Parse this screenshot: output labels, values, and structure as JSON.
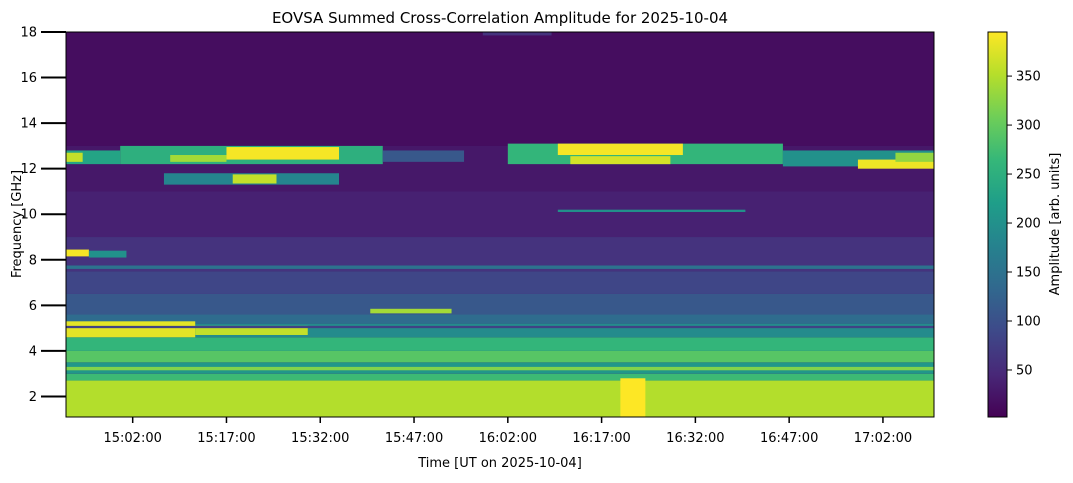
{
  "chart_data": {
    "type": "heatmap",
    "title": "EOVSA Summed Cross-Correlation Amplitude for 2025-10-04",
    "xlabel": "Time [UT on 2025-10-04]",
    "ylabel": "Frequency [GHz]",
    "colorbar_label": "Amplitude [arb. units]",
    "colormap": "viridis",
    "colormap_stops": [
      "#440154",
      "#482878",
      "#3e4989",
      "#31688e",
      "#26828e",
      "#1f9e89",
      "#35b779",
      "#6ece58",
      "#b5de2b",
      "#fde725"
    ],
    "xlim": [
      "14:51:20",
      "17:10:10"
    ],
    "ylim": [
      1.1,
      18
    ],
    "clim": [
      2,
      395
    ],
    "x_ticks": [
      "15:02:00",
      "15:17:00",
      "15:32:00",
      "15:47:00",
      "16:02:00",
      "16:17:00",
      "16:32:00",
      "16:47:00",
      "17:02:00"
    ],
    "y_ticks": [
      2,
      4,
      6,
      8,
      10,
      12,
      14,
      16,
      18
    ],
    "colorbar_ticks": [
      50,
      100,
      150,
      200,
      250,
      300,
      350
    ],
    "background_value": 20,
    "bands": [
      {
        "f0": 1.1,
        "f1": 2.7,
        "t0": "14:51:20",
        "t1": "17:10:10",
        "value": 350
      },
      {
        "f0": 2.7,
        "f1": 3.0,
        "t0": "14:51:20",
        "t1": "17:10:10",
        "value": 270
      },
      {
        "f0": 3.0,
        "f1": 3.5,
        "t0": "14:51:20",
        "t1": "17:10:10",
        "value": 210
      },
      {
        "f0": 3.5,
        "f1": 4.0,
        "t0": "14:51:20",
        "t1": "17:10:10",
        "value": 290
      },
      {
        "f0": 4.0,
        "f1": 4.6,
        "t0": "14:51:20",
        "t1": "17:10:10",
        "value": 260
      },
      {
        "f0": 4.6,
        "f1": 5.2,
        "t0": "14:51:20",
        "t1": "17:10:10",
        "value": 190
      },
      {
        "f0": 5.2,
        "f1": 5.6,
        "t0": "14:51:20",
        "t1": "17:10:10",
        "value": 140
      },
      {
        "f0": 5.6,
        "f1": 6.5,
        "t0": "14:51:20",
        "t1": "17:10:10",
        "value": 110
      },
      {
        "f0": 6.5,
        "f1": 7.5,
        "t0": "14:51:20",
        "t1": "17:10:10",
        "value": 85
      },
      {
        "f0": 7.5,
        "f1": 9.0,
        "t0": "14:51:20",
        "t1": "17:10:10",
        "value": 60
      },
      {
        "f0": 9.0,
        "f1": 11.0,
        "t0": "14:51:20",
        "t1": "17:10:10",
        "value": 38
      },
      {
        "f0": 11.0,
        "f1": 13.0,
        "t0": "14:51:20",
        "t1": "17:10:10",
        "value": 28
      },
      {
        "f0": 13.0,
        "f1": 18.0,
        "t0": "14:51:20",
        "t1": "17:10:10",
        "value": 15
      },
      {
        "f0": 4.6,
        "f1": 5.3,
        "t0": "14:51:20",
        "t1": "15:12:00",
        "value": 380
      },
      {
        "f0": 4.7,
        "f1": 5.1,
        "t0": "15:12:00",
        "t1": "15:30:00",
        "value": 360
      },
      {
        "f0": 5.65,
        "f1": 5.85,
        "t0": "15:40:00",
        "t1": "15:53:00",
        "value": 340
      },
      {
        "f0": 8.15,
        "f1": 8.45,
        "t0": "14:51:20",
        "t1": "14:55:00",
        "value": 390
      },
      {
        "f0": 8.1,
        "f1": 8.4,
        "t0": "14:55:00",
        "t1": "15:01:00",
        "value": 200
      },
      {
        "f0": 11.3,
        "f1": 11.8,
        "t0": "15:07:00",
        "t1": "15:35:00",
        "value": 180
      },
      {
        "f0": 11.35,
        "f1": 11.75,
        "t0": "15:18:00",
        "t1": "15:25:00",
        "value": 360
      },
      {
        "f0": 12.2,
        "f1": 12.8,
        "t0": "14:51:20",
        "t1": "15:00:00",
        "value": 230
      },
      {
        "f0": 12.3,
        "f1": 12.7,
        "t0": "14:51:20",
        "t1": "14:54:00",
        "value": 360
      },
      {
        "f0": 12.2,
        "f1": 13.0,
        "t0": "15:00:00",
        "t1": "15:42:00",
        "value": 250
      },
      {
        "f0": 12.4,
        "f1": 12.95,
        "t0": "15:17:00",
        "t1": "15:35:00",
        "value": 390
      },
      {
        "f0": 12.3,
        "f1": 12.6,
        "t0": "15:08:00",
        "t1": "15:17:00",
        "value": 340
      },
      {
        "f0": 12.3,
        "f1": 12.8,
        "t0": "15:42:00",
        "t1": "15:55:00",
        "value": 110
      },
      {
        "f0": 12.2,
        "f1": 13.1,
        "t0": "16:02:00",
        "t1": "16:46:00",
        "value": 260
      },
      {
        "f0": 12.6,
        "f1": 13.1,
        "t0": "16:10:00",
        "t1": "16:30:00",
        "value": 390
      },
      {
        "f0": 12.2,
        "f1": 12.55,
        "t0": "16:12:00",
        "t1": "16:28:00",
        "value": 370
      },
      {
        "f0": 12.1,
        "f1": 12.8,
        "t0": "16:46:00",
        "t1": "17:10:10",
        "value": 200
      },
      {
        "f0": 12.0,
        "f1": 12.4,
        "t0": "16:58:00",
        "t1": "17:10:10",
        "value": 385
      },
      {
        "f0": 12.3,
        "f1": 12.7,
        "t0": "17:04:00",
        "t1": "17:10:10",
        "value": 330
      },
      {
        "f0": 1.1,
        "f1": 2.8,
        "t0": "16:20:00",
        "t1": "16:24:00",
        "value": 395
      },
      {
        "f0": 17.85,
        "f1": 18.0,
        "t0": "15:58:00",
        "t1": "16:09:00",
        "value": 60
      },
      {
        "f0": 7.6,
        "f1": 7.75,
        "t0": "14:51:20",
        "t1": "17:10:10",
        "value": 150
      },
      {
        "f0": 5.0,
        "f1": 5.1,
        "t0": "14:51:20",
        "t1": "17:10:10",
        "value": 80
      },
      {
        "f0": 3.15,
        "f1": 3.3,
        "t0": "14:51:20",
        "t1": "17:10:10",
        "value": 320
      },
      {
        "f0": 10.1,
        "f1": 10.2,
        "t0": "16:10:00",
        "t1": "16:40:00",
        "value": 200
      }
    ]
  }
}
